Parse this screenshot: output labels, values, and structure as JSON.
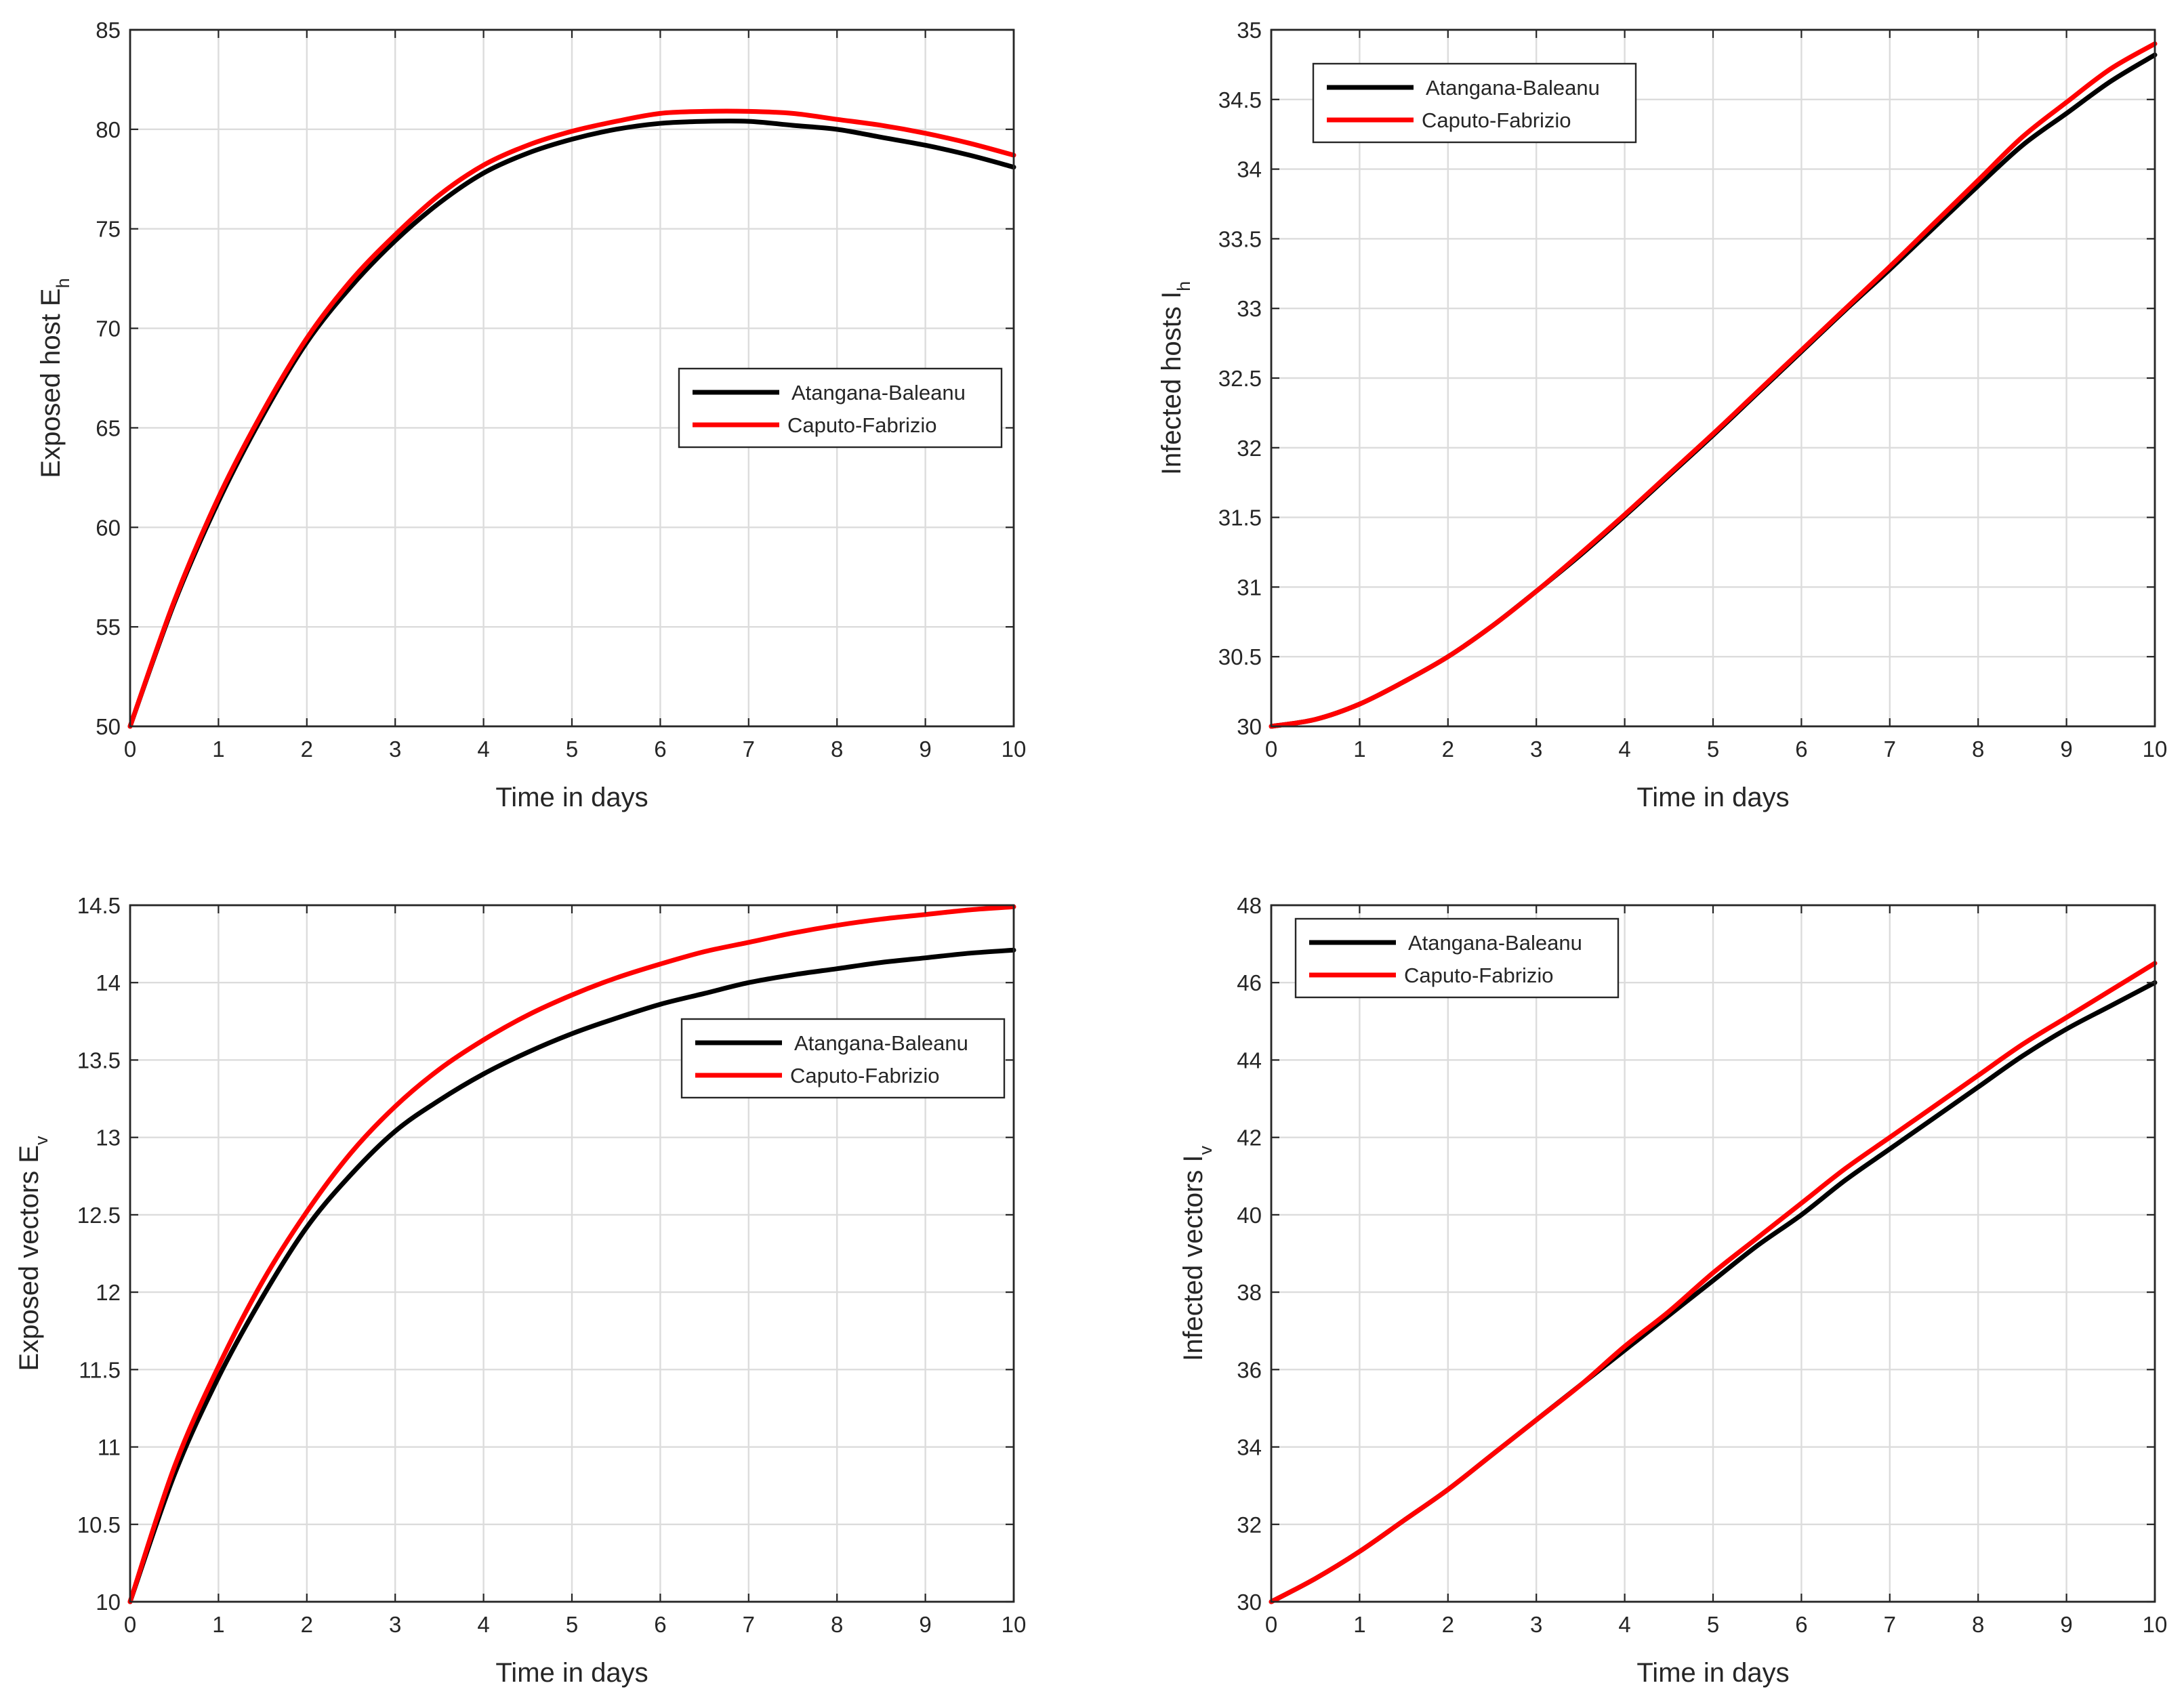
{
  "figure": {
    "legend": [
      "Atangana-Baleanu",
      "Caputo-Fabrizio"
    ],
    "colors": {
      "Atangana-Baleanu": "#000000",
      "Caputo-Fabrizio": "#ff0000"
    }
  },
  "chart_data": [
    {
      "type": "line",
      "xlabel": "Time in days",
      "ylabel": "Exposed host E",
      "ylabel_sub": "h",
      "xlim": [
        0,
        10
      ],
      "ylim": [
        50,
        85
      ],
      "xticks": [
        0,
        1,
        2,
        3,
        4,
        5,
        6,
        7,
        8,
        9,
        10
      ],
      "yticks": [
        50,
        55,
        60,
        65,
        70,
        75,
        80,
        85
      ],
      "legend_position": "middle-right",
      "grid": true,
      "x": [
        0,
        0.5,
        1,
        1.5,
        2,
        2.5,
        3,
        3.5,
        4,
        4.5,
        5,
        5.5,
        6,
        6.5,
        7,
        7.5,
        8,
        8.5,
        9,
        9.5,
        10
      ],
      "series": [
        {
          "name": "Atangana-Baleanu",
          "color": "#000000",
          "values": [
            50,
            56.2,
            61.3,
            65.6,
            69.3,
            72.1,
            74.4,
            76.3,
            77.8,
            78.8,
            79.5,
            80.0,
            80.3,
            80.4,
            80.4,
            80.2,
            80.0,
            79.6,
            79.2,
            78.7,
            78.1
          ]
        },
        {
          "name": "Caputo-Fabrizio",
          "color": "#ff0000",
          "values": [
            50,
            56.3,
            61.5,
            65.8,
            69.5,
            72.4,
            74.7,
            76.7,
            78.2,
            79.2,
            79.9,
            80.4,
            80.8,
            80.9,
            80.9,
            80.8,
            80.5,
            80.2,
            79.8,
            79.3,
            78.7
          ]
        }
      ]
    },
    {
      "type": "line",
      "xlabel": "Time in days",
      "ylabel": "Infected  hosts I",
      "ylabel_sub": "h",
      "xlim": [
        0,
        10
      ],
      "ylim": [
        30,
        35
      ],
      "xticks": [
        0,
        1,
        2,
        3,
        4,
        5,
        6,
        7,
        8,
        9,
        10
      ],
      "yticks": [
        30,
        30.5,
        31,
        31.5,
        32,
        32.5,
        33,
        33.5,
        34,
        34.5,
        35
      ],
      "legend_position": "top-left",
      "grid": true,
      "x": [
        0,
        0.5,
        1,
        1.5,
        2,
        2.5,
        3,
        3.5,
        4,
        4.5,
        5,
        5.5,
        6,
        6.5,
        7,
        7.5,
        8,
        8.5,
        9,
        9.5,
        10
      ],
      "series": [
        {
          "name": "Atangana-Baleanu",
          "color": "#000000",
          "values": [
            30,
            30.05,
            30.16,
            30.32,
            30.5,
            30.72,
            30.97,
            31.23,
            31.51,
            31.8,
            32.09,
            32.39,
            32.69,
            32.99,
            33.28,
            33.58,
            33.88,
            34.17,
            34.4,
            34.63,
            34.82
          ]
        },
        {
          "name": "Caputo-Fabrizio",
          "color": "#ff0000",
          "values": [
            30,
            30.05,
            30.16,
            30.32,
            30.5,
            30.72,
            30.97,
            31.24,
            31.52,
            31.81,
            32.1,
            32.4,
            32.7,
            33.0,
            33.3,
            33.61,
            33.92,
            34.23,
            34.48,
            34.72,
            34.9
          ]
        }
      ]
    },
    {
      "type": "line",
      "xlabel": "Time in days",
      "ylabel": "Exposed vectors E",
      "ylabel_sub": "v",
      "xlim": [
        0,
        10
      ],
      "ylim": [
        10,
        14.5
      ],
      "xticks": [
        0,
        1,
        2,
        3,
        4,
        5,
        6,
        7,
        8,
        9,
        10
      ],
      "yticks": [
        10,
        10.5,
        11,
        11.5,
        12,
        12.5,
        13,
        13.5,
        14,
        14.5
      ],
      "legend_position": "middle-right",
      "grid": true,
      "x": [
        0,
        0.5,
        1,
        1.5,
        2,
        2.5,
        3,
        3.5,
        4,
        4.5,
        5,
        5.5,
        6,
        6.5,
        7,
        7.5,
        8,
        8.5,
        9,
        9.5,
        10
      ],
      "series": [
        {
          "name": "Atangana-Baleanu",
          "color": "#000000",
          "values": [
            10,
            10.82,
            11.45,
            11.97,
            12.42,
            12.76,
            13.04,
            13.24,
            13.41,
            13.55,
            13.67,
            13.77,
            13.86,
            13.93,
            14.0,
            14.05,
            14.09,
            14.13,
            14.16,
            14.19,
            14.21
          ]
        },
        {
          "name": "Caputo-Fabrizio",
          "color": "#ff0000",
          "values": [
            10,
            10.87,
            11.52,
            12.07,
            12.52,
            12.9,
            13.2,
            13.44,
            13.63,
            13.79,
            13.92,
            14.03,
            14.12,
            14.2,
            14.26,
            14.32,
            14.37,
            14.41,
            14.44,
            14.47,
            14.49
          ]
        }
      ]
    },
    {
      "type": "line",
      "xlabel": "Time in days",
      "ylabel": "Infected vectors I",
      "ylabel_sub": "v",
      "xlim": [
        0,
        10
      ],
      "ylim": [
        30,
        48
      ],
      "xticks": [
        0,
        1,
        2,
        3,
        4,
        5,
        6,
        7,
        8,
        9,
        10
      ],
      "yticks": [
        30,
        32,
        34,
        36,
        38,
        40,
        42,
        44,
        46,
        48
      ],
      "legend_position": "top-left",
      "grid": true,
      "x": [
        0,
        0.5,
        1,
        1.5,
        2,
        2.5,
        3,
        3.5,
        4,
        4.5,
        5,
        5.5,
        6,
        6.5,
        7,
        7.5,
        8,
        8.5,
        9,
        9.5,
        10
      ],
      "series": [
        {
          "name": "Atangana-Baleanu",
          "color": "#000000",
          "values": [
            30,
            30.6,
            31.3,
            32.1,
            32.9,
            33.8,
            34.7,
            35.6,
            36.5,
            37.4,
            38.3,
            39.2,
            40.0,
            40.9,
            41.7,
            42.5,
            43.3,
            44.1,
            44.8,
            45.4,
            46.0
          ]
        },
        {
          "name": "Caputo-Fabrizio",
          "color": "#ff0000",
          "values": [
            30,
            30.6,
            31.3,
            32.1,
            32.9,
            33.8,
            34.7,
            35.6,
            36.6,
            37.5,
            38.5,
            39.4,
            40.3,
            41.2,
            42.0,
            42.8,
            43.6,
            44.4,
            45.1,
            45.8,
            46.5
          ]
        }
      ]
    }
  ]
}
